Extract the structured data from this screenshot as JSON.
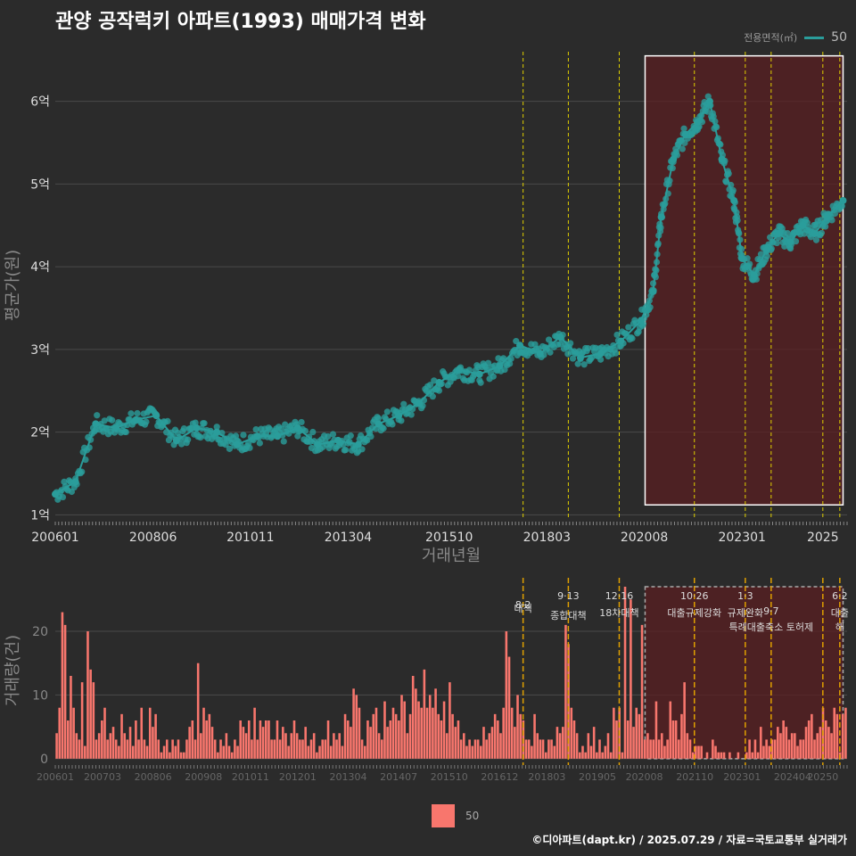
{
  "title": "관양 공작럭키 아파트(1993) 매매가격 변화",
  "footer": "©디아파트(dapt.kr) / 2025.07.29 / 자료=국토교통부 실거래가",
  "legend_top": {
    "label": "전용면적(㎡)",
    "value": "50"
  },
  "legend_bottom": {
    "value": "50"
  },
  "colors": {
    "price": "#2a9d9b",
    "volume": "#f8766d",
    "highlight": "#5a1f22",
    "vline": "#e0d000",
    "grid": "#4a4a4a"
  },
  "chart_data": [
    {
      "type": "line",
      "title": "관양 공작럭키 아파트(1993) 매매가격 변화",
      "xlabel": "거래년월",
      "ylabel": "평균가(원)",
      "xlim": [
        2006.0,
        2025.6
      ],
      "ylim": [
        0.95,
        6.6
      ],
      "yticks": [
        1,
        2,
        3,
        4,
        5,
        6
      ],
      "yticklabels": [
        "1억",
        "2억",
        "3억",
        "4억",
        "5억",
        "6억"
      ],
      "xticks": [
        2006.0,
        2008.42,
        2010.83,
        2013.25,
        2015.75,
        2018.17,
        2020.58,
        2023.0,
        2025.0
      ],
      "xticklabels": [
        "200601",
        "200806",
        "201011",
        "201304",
        "201510",
        "201803",
        "202008",
        "202301",
        "2025"
      ],
      "series": [
        {
          "name": "50",
          "x": [
            2006.0,
            2006.5,
            2007.0,
            2007.5,
            2008.0,
            2008.5,
            2009.0,
            2009.5,
            2010.0,
            2010.5,
            2011.0,
            2011.5,
            2012.0,
            2012.5,
            2013.0,
            2013.5,
            2014.0,
            2014.5,
            2015.0,
            2015.5,
            2016.0,
            2016.5,
            2017.0,
            2017.5,
            2018.0,
            2018.5,
            2019.0,
            2019.5,
            2020.0,
            2020.5,
            2020.8,
            2021.0,
            2021.3,
            2021.6,
            2021.9,
            2022.2,
            2022.5,
            2022.8,
            2023.0,
            2023.3,
            2023.6,
            2023.9,
            2024.2,
            2024.5,
            2024.8,
            2025.1,
            2025.5
          ],
          "values": [
            1.25,
            1.4,
            2.1,
            2.05,
            2.15,
            2.2,
            1.9,
            2.05,
            2.0,
            1.85,
            1.95,
            1.95,
            2.05,
            1.85,
            1.9,
            1.85,
            2.1,
            2.2,
            2.35,
            2.6,
            2.75,
            2.7,
            2.8,
            3.05,
            2.95,
            3.15,
            2.9,
            2.95,
            3.1,
            3.35,
            3.7,
            4.6,
            5.3,
            5.6,
            5.75,
            6.0,
            5.3,
            4.8,
            4.1,
            3.9,
            4.2,
            4.4,
            4.3,
            4.5,
            4.4,
            4.6,
            4.8
          ]
        }
      ],
      "highlight_range": [
        2020.6,
        2025.5
      ],
      "vlines": [
        2017.58,
        2018.7,
        2019.96,
        2021.82,
        2023.08,
        2023.72,
        2025.0,
        2025.42
      ]
    },
    {
      "type": "bar",
      "xlabel": "",
      "ylabel": "거래량(건)",
      "ylim": [
        -1,
        27
      ],
      "yticks": [
        0,
        10,
        20
      ],
      "yticklabels": [
        "0",
        "10",
        "20"
      ],
      "xticks": [
        2006.0,
        2007.17,
        2008.42,
        2009.67,
        2010.83,
        2012.0,
        2013.25,
        2014.5,
        2015.75,
        2017.0,
        2018.17,
        2019.42,
        2020.58,
        2021.83,
        2023.0,
        2024.25,
        2025.0
      ],
      "xticklabels": [
        "200601",
        "200703",
        "200806",
        "200908",
        "201011",
        "201201",
        "201304",
        "201407",
        "201510",
        "201612",
        "201803",
        "201905",
        "202008",
        "202110",
        "202301",
        "202404",
        "20250"
      ],
      "series": [
        {
          "name": "50",
          "values": [
            4,
            8,
            23,
            21,
            6,
            13,
            8,
            4,
            3,
            12,
            2,
            20,
            14,
            12,
            3,
            4,
            6,
            8,
            3,
            4,
            5,
            3,
            2,
            7,
            4,
            3,
            5,
            2,
            6,
            3,
            8,
            3,
            2,
            8,
            5,
            7,
            3,
            1,
            2,
            3,
            1,
            3,
            2,
            3,
            1,
            1,
            3,
            5,
            6,
            3,
            15,
            4,
            8,
            6,
            7,
            5,
            3,
            1,
            3,
            2,
            4,
            2,
            1,
            3,
            2,
            6,
            5,
            4,
            6,
            3,
            8,
            3,
            6,
            5,
            6,
            6,
            3,
            3,
            6,
            3,
            5,
            4,
            2,
            4,
            6,
            4,
            3,
            3,
            5,
            2,
            3,
            4,
            1,
            2,
            3,
            3,
            6,
            2,
            4,
            3,
            4,
            2,
            7,
            6,
            5,
            11,
            10,
            8,
            3,
            2,
            6,
            5,
            7,
            8,
            4,
            3,
            9,
            5,
            6,
            8,
            7,
            6,
            10,
            9,
            4,
            7,
            13,
            11,
            9,
            8,
            14,
            8,
            10,
            8,
            11,
            7,
            6,
            9,
            4,
            12,
            7,
            5,
            6,
            3,
            4,
            2,
            3,
            2,
            3,
            3,
            2,
            5,
            3,
            4,
            5,
            7,
            6,
            4,
            8,
            20,
            16,
            8,
            5,
            10,
            7,
            6,
            3,
            3,
            2,
            7,
            4,
            3,
            3,
            1,
            3,
            3,
            2,
            5,
            4,
            5,
            21,
            18,
            8,
            6,
            4,
            1,
            2,
            1,
            4,
            2,
            5,
            1,
            3,
            1,
            2,
            4,
            1,
            8,
            6,
            8,
            1,
            27,
            6,
            25,
            5,
            8,
            7,
            21,
            3,
            4,
            3,
            3,
            9,
            3,
            4,
            2,
            3,
            9,
            6,
            6,
            3,
            7,
            12,
            4,
            3,
            1,
            2,
            2,
            2,
            0,
            1,
            0,
            3,
            2,
            1,
            1,
            1,
            0,
            1,
            0,
            0,
            1,
            0,
            0,
            1,
            3,
            1,
            3,
            1,
            5,
            2,
            3,
            2,
            3,
            3,
            5,
            4,
            6,
            5,
            3,
            4,
            4,
            2,
            3,
            3,
            5,
            6,
            7,
            3,
            4,
            5,
            8,
            6,
            5,
            4,
            8,
            7,
            1,
            7,
            8
          ]
        }
      ],
      "highlight_range": [
        2020.6,
        2025.5
      ],
      "vlines": [
        2017.58,
        2018.7,
        2019.96,
        2021.82,
        2023.08,
        2023.72,
        2025.0,
        2025.42
      ],
      "annotations": [
        {
          "x": 2017.58,
          "date": "8·2",
          "label": "대책"
        },
        {
          "x": 2018.7,
          "date": "9·13",
          "label": "종합대책"
        },
        {
          "x": 2019.96,
          "date": "12·16",
          "label": "18차대책"
        },
        {
          "x": 2021.82,
          "date": "10·26",
          "label": "대출규제강화"
        },
        {
          "x": 2023.08,
          "date": "1·3",
          "label": "규제완화"
        },
        {
          "x": 2023.72,
          "date": "9·7",
          "label": "특례대출축소 토허제"
        },
        {
          "x": 2025.42,
          "date": "6·2",
          "label": "대출"
        },
        {
          "x": 2025.42,
          "date": "",
          "label": "해"
        }
      ]
    }
  ]
}
